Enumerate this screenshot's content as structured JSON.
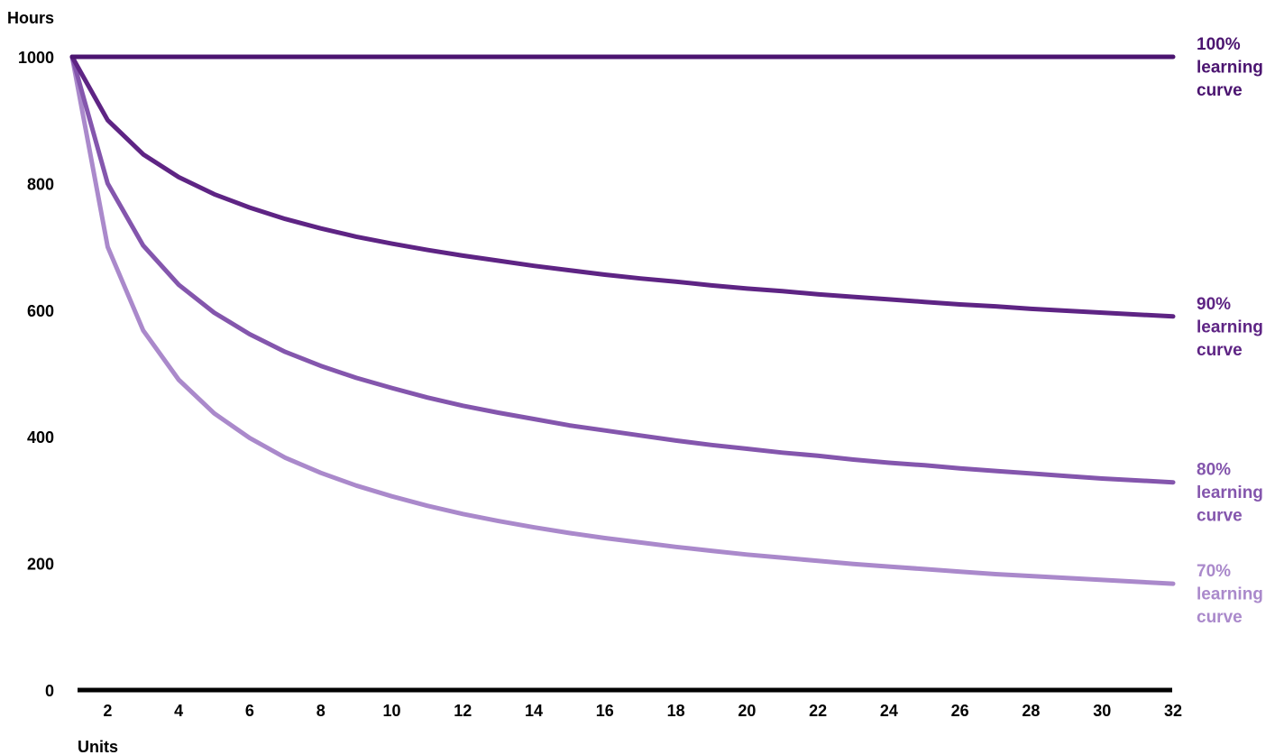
{
  "chart_data": {
    "type": "line",
    "ylabel": "Hours",
    "xlabel": "Units",
    "xlim": [
      1,
      32
    ],
    "ylim": [
      0,
      1000
    ],
    "x_ticks": [
      2,
      4,
      6,
      8,
      10,
      12,
      14,
      16,
      18,
      20,
      22,
      24,
      26,
      28,
      30,
      32
    ],
    "y_ticks": [
      0,
      200,
      400,
      600,
      800,
      1000
    ],
    "x": [
      1,
      2,
      3,
      4,
      5,
      6,
      7,
      8,
      9,
      10,
      11,
      12,
      13,
      14,
      15,
      16,
      17,
      18,
      19,
      20,
      21,
      22,
      23,
      24,
      25,
      26,
      27,
      28,
      29,
      30,
      31,
      32
    ],
    "grid": false,
    "legend": "direct labels at right end of each line",
    "series": [
      {
        "label_lines": [
          "100%",
          "learning",
          "curve"
        ],
        "color": "#4b1470",
        "values": [
          1000,
          1000,
          1000,
          1000,
          1000,
          1000,
          1000,
          1000,
          1000,
          1000,
          1000,
          1000,
          1000,
          1000,
          1000,
          1000,
          1000,
          1000,
          1000,
          1000,
          1000,
          1000,
          1000,
          1000,
          1000,
          1000,
          1000,
          1000,
          1000,
          1000,
          1000,
          1000
        ]
      },
      {
        "label_lines": [
          "90%",
          "learning",
          "curve"
        ],
        "color": "#5e2484",
        "values": [
          1000,
          900,
          846,
          810,
          783,
          762,
          744,
          729,
          716,
          705,
          695,
          686,
          678,
          670,
          663,
          656,
          650,
          645,
          639,
          634,
          630,
          625,
          621,
          617,
          613,
          609,
          606,
          602,
          599,
          596,
          593,
          590
        ]
      },
      {
        "label_lines": [
          "80%",
          "learning",
          "curve"
        ],
        "color": "#8456ad",
        "values": [
          1000,
          800,
          702,
          640,
          596,
          562,
          534,
          512,
          493,
          477,
          462,
          449,
          438,
          428,
          418,
          410,
          402,
          394,
          387,
          381,
          375,
          370,
          364,
          359,
          355,
          350,
          346,
          342,
          338,
          334,
          331,
          328
        ]
      },
      {
        "label_lines": [
          "70%",
          "learning",
          "curve"
        ],
        "color": "#aa89cb",
        "values": [
          1000,
          700,
          568,
          490,
          437,
          398,
          367,
          343,
          323,
          306,
          291,
          278,
          267,
          257,
          248,
          240,
          233,
          226,
          220,
          214,
          209,
          204,
          199,
          195,
          191,
          187,
          183,
          180,
          177,
          174,
          171,
          168
        ]
      }
    ]
  }
}
